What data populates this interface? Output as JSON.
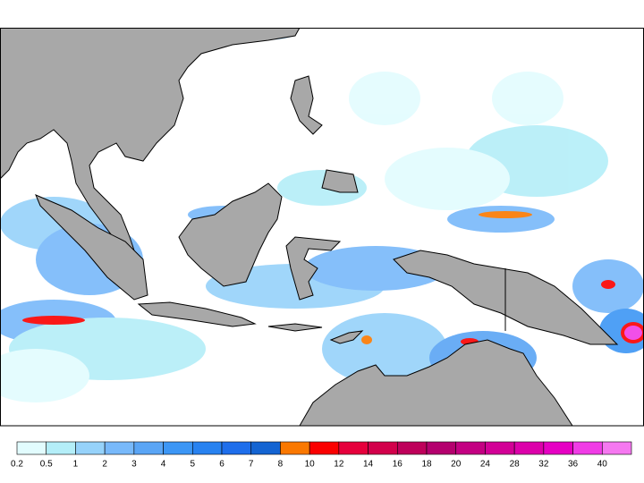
{
  "legend": {
    "items": [
      {
        "label": "0.2",
        "color": "#e2fcfe"
      },
      {
        "label": "0.5",
        "color": "#b4eef8"
      },
      {
        "label": "1",
        "color": "#96d2fa"
      },
      {
        "label": "2",
        "color": "#78b9fa"
      },
      {
        "label": "3",
        "color": "#5aa5f5"
      },
      {
        "label": "4",
        "color": "#3c96f5"
      },
      {
        "label": "5",
        "color": "#2882f0"
      },
      {
        "label": "6",
        "color": "#1e6eeb"
      },
      {
        "label": "7",
        "color": "#1464d2"
      },
      {
        "label": "8",
        "color": "#fa7800"
      },
      {
        "label": "10",
        "color": "#fa0000"
      },
      {
        "label": "12",
        "color": "#e6003c"
      },
      {
        "label": "14",
        "color": "#d2004b"
      },
      {
        "label": "16",
        "color": "#be005a"
      },
      {
        "label": "18",
        "color": "#b4006e"
      },
      {
        "label": "20",
        "color": "#c30082"
      },
      {
        "label": "24",
        "color": "#d20096"
      },
      {
        "label": "28",
        "color": "#dc00aa"
      },
      {
        "label": "32",
        "color": "#e600c3"
      },
      {
        "label": "36",
        "color": "#f03ce6"
      },
      {
        "label": "40",
        "color": "#f578f0"
      }
    ]
  }
}
